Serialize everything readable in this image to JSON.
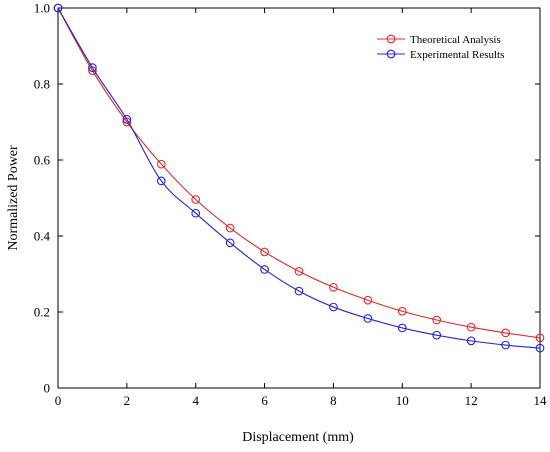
{
  "chart_data": {
    "type": "line",
    "title": "",
    "xlabel": "Displacement (mm)",
    "ylabel": "Normalized Power",
    "xlim": [
      0,
      14
    ],
    "ylim": [
      0,
      1.0
    ],
    "x_ticks": [
      0,
      2,
      4,
      6,
      8,
      10,
      12,
      14
    ],
    "x_tick_labels": [
      "0",
      "2",
      "4",
      "6",
      "8",
      "10",
      "12",
      "14"
    ],
    "y_ticks": [
      0,
      0.2,
      0.4,
      0.6,
      0.8,
      1.0
    ],
    "y_tick_labels": [
      "0",
      "0.2",
      "0.4",
      "0.6",
      "0.8",
      "1.0"
    ],
    "grid": false,
    "legend_position": "top-right",
    "x": [
      0,
      1,
      2,
      3,
      4,
      5,
      6,
      7,
      8,
      9,
      10,
      11,
      12,
      13,
      14
    ],
    "series": [
      {
        "name": "Theoretical Analysis",
        "color": "#e8262a",
        "marker": "open-circle",
        "values": [
          1.0,
          0.835,
          0.7,
          0.589,
          0.496,
          0.421,
          0.358,
          0.307,
          0.265,
          0.231,
          0.202,
          0.179,
          0.16,
          0.145,
          0.132
        ]
      },
      {
        "name": "Experimental Results",
        "color": "#2323e0",
        "marker": "open-circle",
        "values": [
          1.0,
          0.843,
          0.707,
          0.545,
          0.46,
          0.382,
          0.312,
          0.255,
          0.213,
          0.183,
          0.158,
          0.139,
          0.124,
          0.113,
          0.105
        ]
      }
    ]
  }
}
